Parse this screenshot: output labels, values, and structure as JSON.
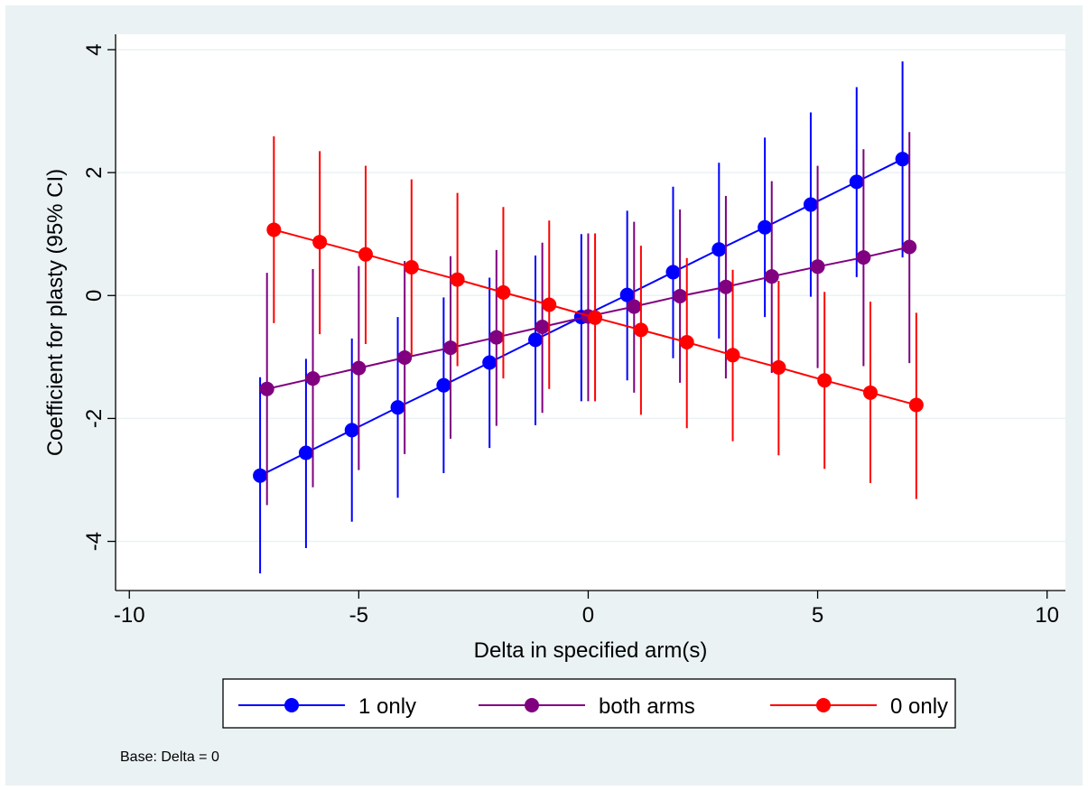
{
  "chart_data": {
    "type": "line",
    "xlabel": "Delta in specified arm(s)",
    "ylabel": "Coefficient for plasty (95% CI)",
    "xlim": [
      -10.3,
      10.4
    ],
    "ylim": [
      -4.8,
      4.25
    ],
    "x_ticks": [
      -10,
      -5,
      0,
      5,
      10
    ],
    "y_ticks": [
      -4,
      -2,
      0,
      2,
      4
    ],
    "x_tick_labels": [
      "-10",
      "-5",
      "0",
      "5",
      "10"
    ],
    "y_tick_labels": [
      "-4",
      "-2",
      "0",
      "2",
      "4"
    ],
    "grid": "horizontal",
    "legend_position": "bottom",
    "note": "Base: Delta = 0",
    "series": [
      {
        "name": "1 only",
        "color": "#0000ff",
        "x": [
          -7.15,
          -6.15,
          -5.15,
          -4.15,
          -3.15,
          -2.15,
          -1.15,
          -0.15,
          0.85,
          1.85,
          2.85,
          3.85,
          4.85,
          5.85,
          6.85
        ],
        "y": [
          -2.93,
          -2.56,
          -2.19,
          -1.82,
          -1.46,
          -1.09,
          -0.72,
          -0.35,
          0.01,
          0.38,
          0.75,
          1.11,
          1.48,
          1.85,
          2.22
        ],
        "lower": [
          -4.52,
          -4.11,
          -3.68,
          -3.29,
          -2.89,
          -2.48,
          -2.11,
          -1.72,
          -1.38,
          -1.02,
          -0.7,
          -0.35,
          -0.02,
          0.3,
          0.62
        ],
        "upper": [
          -1.33,
          -1.03,
          -0.7,
          -0.35,
          -0.03,
          0.29,
          0.65,
          1.0,
          1.38,
          1.77,
          2.16,
          2.57,
          2.98,
          3.39,
          3.81
        ]
      },
      {
        "name": "both arms",
        "color": "#800080",
        "x": [
          -7.0,
          -6.0,
          -5.0,
          -4.0,
          -3.0,
          -2.0,
          -1.0,
          0.0,
          1.0,
          2.0,
          3.0,
          4.0,
          5.0,
          6.0,
          7.0
        ],
        "y": [
          -1.52,
          -1.35,
          -1.18,
          -1.01,
          -0.85,
          -0.68,
          -0.51,
          -0.34,
          -0.18,
          -0.01,
          0.14,
          0.31,
          0.47,
          0.62,
          0.79
        ],
        "lower": [
          -3.41,
          -3.12,
          -2.84,
          -2.58,
          -2.33,
          -2.12,
          -1.91,
          -1.72,
          -1.58,
          -1.42,
          -1.35,
          -1.26,
          -1.18,
          -1.15,
          -1.1
        ],
        "upper": [
          0.37,
          0.43,
          0.48,
          0.56,
          0.64,
          0.74,
          0.86,
          1.01,
          1.2,
          1.4,
          1.62,
          1.86,
          2.11,
          2.38,
          2.66
        ]
      },
      {
        "name": "0 only",
        "color": "#ff0000",
        "x": [
          -6.85,
          -5.85,
          -4.85,
          -3.85,
          -2.85,
          -1.85,
          -0.85,
          0.15,
          1.15,
          2.15,
          3.15,
          4.15,
          5.15,
          6.15,
          7.15
        ],
        "y": [
          1.07,
          0.87,
          0.67,
          0.46,
          0.26,
          0.05,
          -0.15,
          -0.36,
          -0.56,
          -0.76,
          -0.97,
          -1.17,
          -1.38,
          -1.58,
          -1.78
        ],
        "lower": [
          -0.45,
          -0.63,
          -0.79,
          -0.98,
          -1.15,
          -1.35,
          -1.52,
          -1.72,
          -1.94,
          -2.16,
          -2.37,
          -2.6,
          -2.82,
          -3.05,
          -3.31
        ],
        "upper": [
          2.59,
          2.35,
          2.11,
          1.89,
          1.67,
          1.44,
          1.22,
          1.01,
          0.81,
          0.61,
          0.42,
          0.24,
          0.06,
          -0.1,
          -0.28
        ]
      }
    ]
  }
}
